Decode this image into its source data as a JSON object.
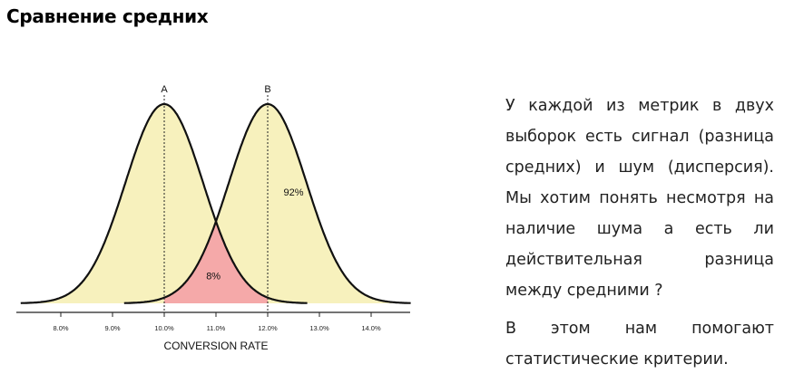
{
  "title": "Сравнение средних",
  "chart_data": {
    "type": "area",
    "xlabel": "CONVERSION RATE",
    "x_ticks": [
      "8.0%",
      "9.0%",
      "10.0%",
      "11.0%",
      "12.0%",
      "13.0%",
      "14.0%"
    ],
    "xlim": [
      7.0,
      14.7
    ],
    "series": [
      {
        "name": "A",
        "mean": 10.0,
        "sd": 0.75,
        "color": "#f7f1bd"
      },
      {
        "name": "B",
        "mean": 12.0,
        "sd": 0.75,
        "color": "#f7f1bd"
      }
    ],
    "overlap_color": "#f5a9a9",
    "annotations": [
      {
        "text": "8%",
        "x": 10.95,
        "y": 0.12
      },
      {
        "text": "92%",
        "x": 12.5,
        "y": 0.54
      }
    ]
  },
  "paragraphs": [
    "У каждой из метрик в двух выборок есть сигнал (разница средних) и шум (дисперсия). Мы хотим понять несмотря на наличие шума а есть ли действительная разница между средними ?",
    "В этом нам помогают статистические критерии."
  ]
}
